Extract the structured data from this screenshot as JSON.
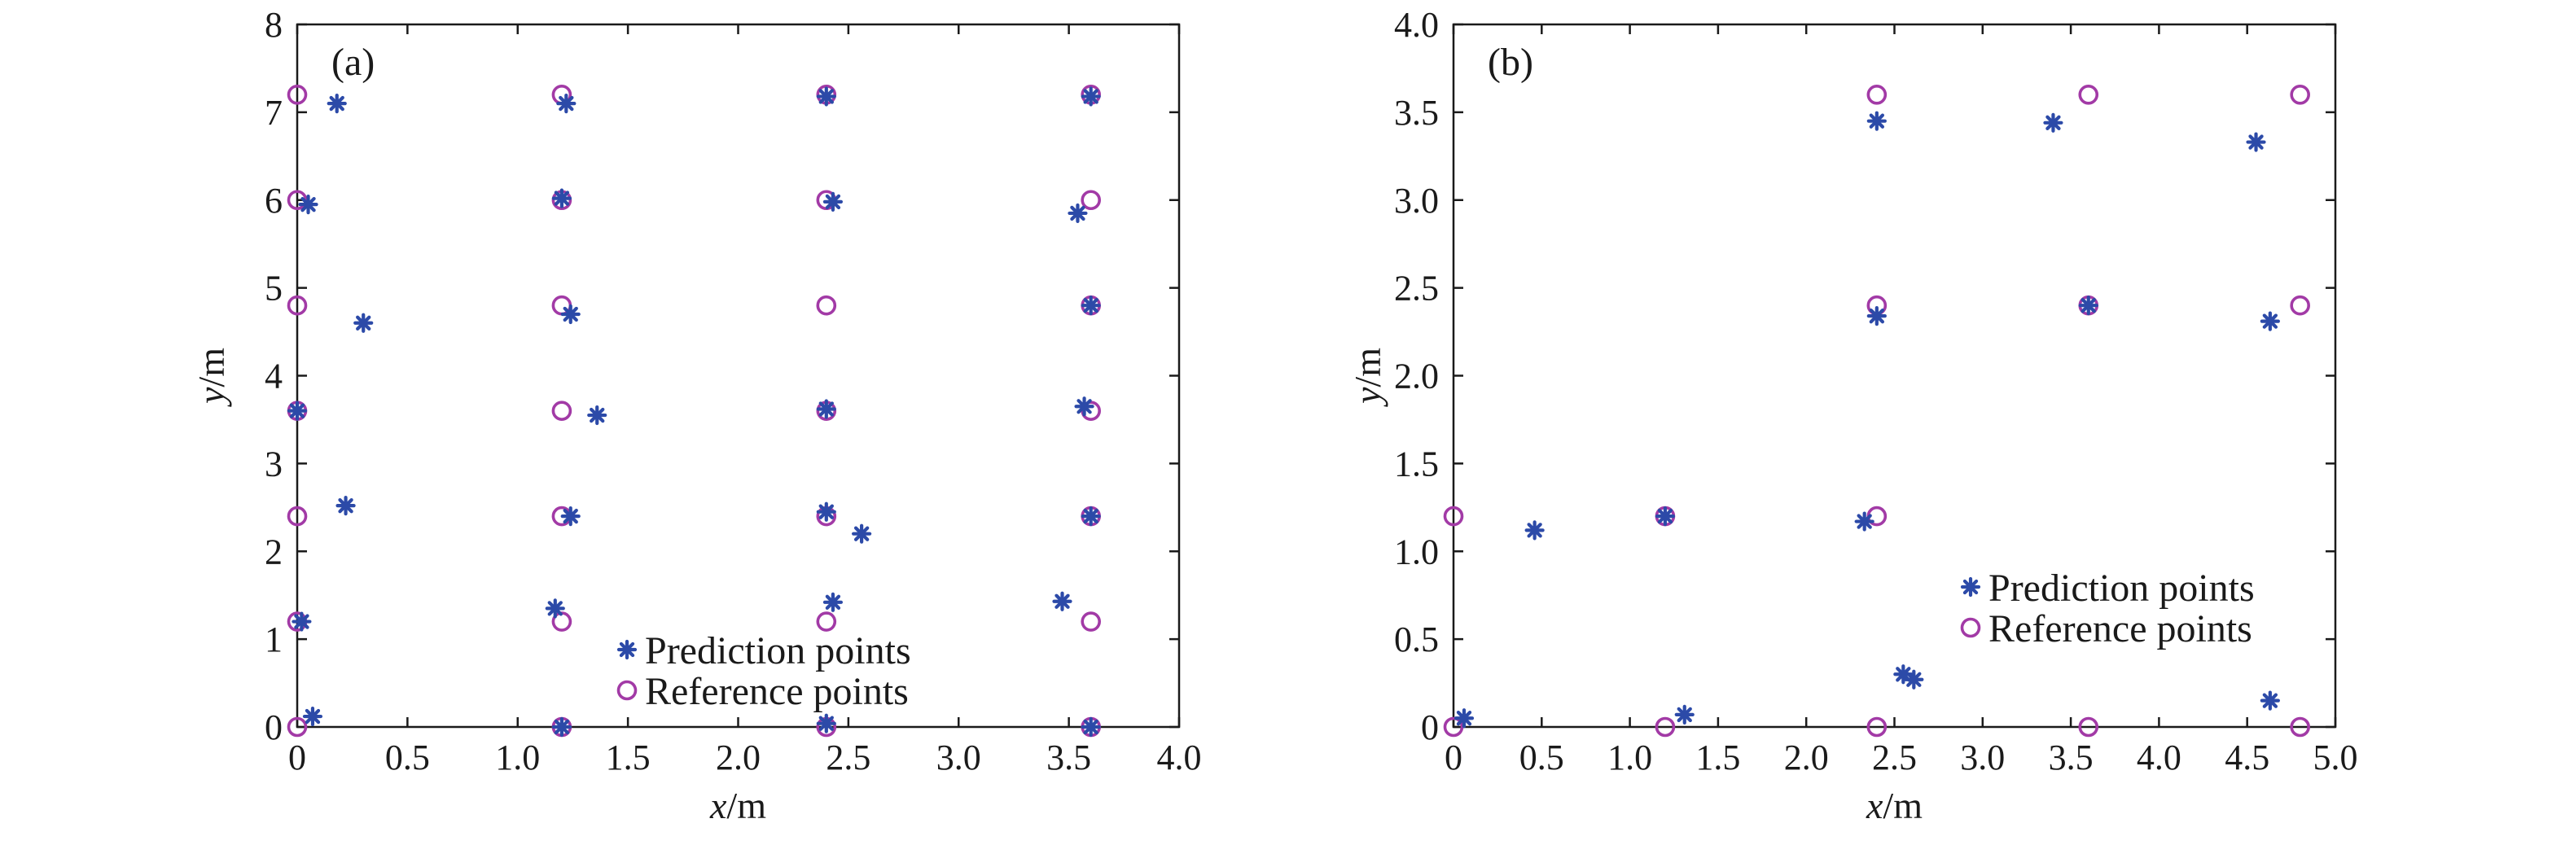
{
  "colors": {
    "prediction": "#2c4aa8",
    "reference": "#a23aa6",
    "axis": "#1a1a1a",
    "background": "#ffffff"
  },
  "legend_placement": [
    "bottom-center",
    "bottom-right"
  ],
  "chart_data": [
    {
      "type": "scatter",
      "panel_label": "(a)",
      "xlabel": {
        "var": "x",
        "unit": "/m"
      },
      "ylabel": {
        "var": "y",
        "unit": "/m"
      },
      "xlim": [
        0,
        4.0
      ],
      "ylim": [
        0,
        8
      ],
      "xticks": [
        0,
        0.5,
        1.0,
        1.5,
        2.0,
        2.5,
        3.0,
        3.5,
        4.0
      ],
      "xtick_labels": [
        "0",
        "0.5",
        "1.0",
        "1.5",
        "2.0",
        "2.5",
        "3.0",
        "3.5",
        "4.0"
      ],
      "yticks": [
        0,
        1,
        2,
        3,
        4,
        5,
        6,
        7,
        8
      ],
      "ytick_labels": [
        "0",
        "1",
        "2",
        "3",
        "4",
        "5",
        "6",
        "7",
        "8"
      ],
      "grid": false,
      "legend": {
        "placement": "bottom-center"
      },
      "series": [
        {
          "name": "Prediction points",
          "marker": "asterisk",
          "points": [
            [
              0.18,
              7.1
            ],
            [
              0.05,
              5.95
            ],
            [
              0.3,
              4.6
            ],
            [
              0.0,
              3.6
            ],
            [
              0.22,
              2.52
            ],
            [
              0.02,
              1.2
            ],
            [
              0.07,
              0.12
            ],
            [
              1.22,
              7.1
            ],
            [
              1.2,
              6.02
            ],
            [
              1.24,
              4.7
            ],
            [
              1.36,
              3.55
            ],
            [
              1.24,
              2.4
            ],
            [
              1.17,
              1.35
            ],
            [
              1.2,
              0.0
            ],
            [
              2.4,
              7.18
            ],
            [
              2.43,
              5.98
            ],
            [
              2.4,
              3.62
            ],
            [
              2.4,
              2.45
            ],
            [
              2.56,
              2.2
            ],
            [
              2.43,
              1.42
            ],
            [
              2.4,
              0.04
            ],
            [
              3.6,
              7.18
            ],
            [
              3.54,
              5.85
            ],
            [
              3.6,
              4.8
            ],
            [
              3.57,
              3.65
            ],
            [
              3.6,
              2.4
            ],
            [
              3.47,
              1.43
            ],
            [
              3.6,
              0.0
            ]
          ]
        },
        {
          "name": "Reference points",
          "marker": "circle",
          "points": [
            [
              0,
              7.2
            ],
            [
              0,
              6.0
            ],
            [
              0,
              4.8
            ],
            [
              0,
              3.6
            ],
            [
              0,
              2.4
            ],
            [
              0,
              1.2
            ],
            [
              0,
              0
            ],
            [
              1.2,
              7.2
            ],
            [
              1.2,
              6.0
            ],
            [
              1.2,
              4.8
            ],
            [
              1.2,
              3.6
            ],
            [
              1.2,
              2.4
            ],
            [
              1.2,
              1.2
            ],
            [
              1.2,
              0
            ],
            [
              2.4,
              7.2
            ],
            [
              2.4,
              6.0
            ],
            [
              2.4,
              4.8
            ],
            [
              2.4,
              3.6
            ],
            [
              2.4,
              2.4
            ],
            [
              2.4,
              1.2
            ],
            [
              2.4,
              0
            ],
            [
              3.6,
              7.2
            ],
            [
              3.6,
              6.0
            ],
            [
              3.6,
              4.8
            ],
            [
              3.6,
              3.6
            ],
            [
              3.6,
              2.4
            ],
            [
              3.6,
              1.2
            ],
            [
              3.6,
              0
            ]
          ]
        }
      ]
    },
    {
      "type": "scatter",
      "panel_label": "(b)",
      "xlabel": {
        "var": "x",
        "unit": "/m"
      },
      "ylabel": {
        "var": "y",
        "unit": "/m"
      },
      "xlim": [
        0,
        5.0
      ],
      "ylim": [
        0,
        4.0
      ],
      "xticks": [
        0,
        0.5,
        1.0,
        1.5,
        2.0,
        2.5,
        3.0,
        3.5,
        4.0,
        4.5,
        5.0
      ],
      "xtick_labels": [
        "0",
        "0.5",
        "1.0",
        "1.5",
        "2.0",
        "2.5",
        "3.0",
        "3.5",
        "4.0",
        "4.5",
        "5.0"
      ],
      "yticks": [
        0,
        0.5,
        1.0,
        1.5,
        2.0,
        2.5,
        3.0,
        3.5,
        4.0
      ],
      "ytick_labels": [
        "0",
        "0.5",
        "1.0",
        "1.5",
        "2.0",
        "2.5",
        "3.0",
        "3.5",
        "4.0"
      ],
      "grid": false,
      "legend": {
        "placement": "bottom-right"
      },
      "series": [
        {
          "name": "Prediction points",
          "marker": "asterisk",
          "points": [
            [
              0.06,
              0.05
            ],
            [
              0.46,
              1.12
            ],
            [
              1.2,
              1.2
            ],
            [
              1.31,
              0.07
            ],
            [
              2.33,
              1.17
            ],
            [
              2.4,
              3.45
            ],
            [
              2.4,
              2.34
            ],
            [
              2.55,
              0.3
            ],
            [
              2.61,
              0.27
            ],
            [
              3.4,
              3.44
            ],
            [
              3.6,
              2.4
            ],
            [
              4.55,
              3.33
            ],
            [
              4.63,
              2.31
            ],
            [
              4.63,
              0.15
            ]
          ]
        },
        {
          "name": "Reference points",
          "marker": "circle",
          "points": [
            [
              0,
              1.2
            ],
            [
              0,
              0
            ],
            [
              1.2,
              1.2
            ],
            [
              1.2,
              0
            ],
            [
              2.4,
              3.6
            ],
            [
              2.4,
              2.4
            ],
            [
              2.4,
              1.2
            ],
            [
              2.4,
              0
            ],
            [
              3.6,
              3.6
            ],
            [
              3.6,
              2.4
            ],
            [
              3.6,
              0
            ],
            [
              4.8,
              3.6
            ],
            [
              4.8,
              2.4
            ],
            [
              4.8,
              0
            ]
          ]
        }
      ]
    }
  ]
}
